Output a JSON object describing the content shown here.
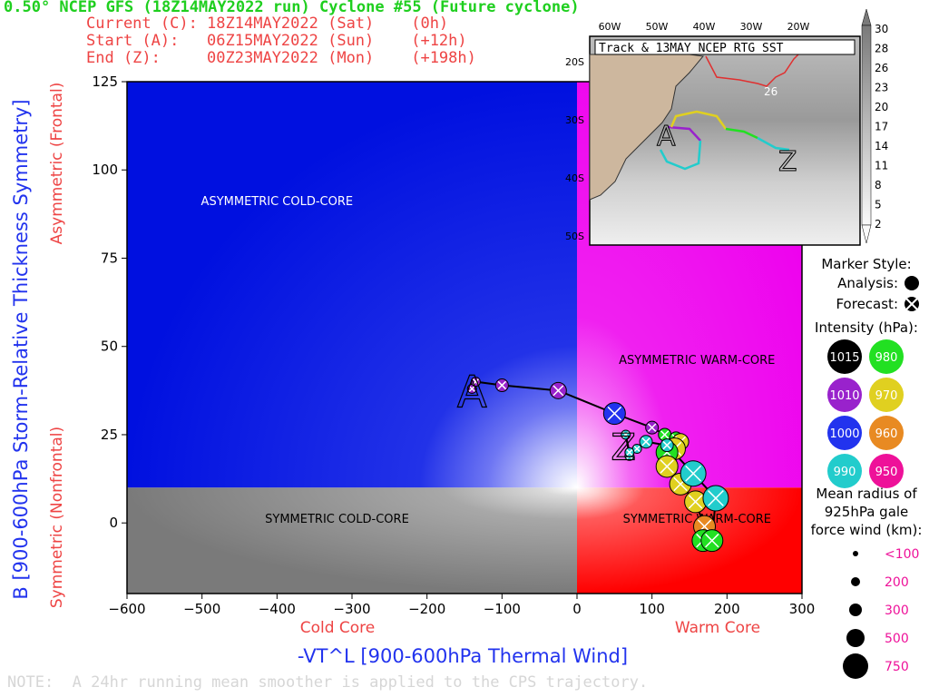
{
  "header": {
    "title": "0.50° NCEP GFS (18Z14MAY2022 run) Cyclone #55 (Future cyclone)",
    "current": "Current (C): 18Z14MAY2022 (Sat)    (0h)",
    "start": "Start (A):   06Z15MAY2022 (Sun)    (+12h)",
    "end": "End (Z):     00Z23MAY2022 (Mon)    (+198h)"
  },
  "note": "NOTE:  A 24hr running mean smoother is applied to the CPS trajectory.",
  "chart_data": [
    {
      "type": "scatter",
      "title": "",
      "xlabel": "-VT^L [900-600hPa Thermal Wind]",
      "ylabel": "B [900-600hPa Storm-Relative Thickness Symmetry]",
      "xlabel_left": "Cold Core",
      "xlabel_right": "Warm Core",
      "ylabel_top": "Asymmetric (Frontal)",
      "ylabel_bottom": "Symmetric (Nonfrontal)",
      "xlim": [
        -600,
        300
      ],
      "ylim": [
        -20,
        125
      ],
      "xticks": [
        -600,
        -500,
        -400,
        -300,
        -200,
        -100,
        0,
        100,
        200,
        300
      ],
      "yticks": [
        0,
        25,
        50,
        75,
        100,
        125
      ],
      "quadrant_labels": {
        "ul": "ASYMMETRIC COLD-CORE",
        "ur": "ASYMMETRIC WARM-CORE",
        "ll": "SYMMETRIC COLD-CORE",
        "lr": "SYMMETRIC WARM-CORE"
      },
      "start_marker": "A",
      "end_marker": "Z",
      "start_point": [
        -140,
        37
      ],
      "end_point": [
        62,
        22
      ],
      "trajectory": [
        {
          "x": -140,
          "y": 38,
          "p": 1010,
          "r": 100,
          "style": "forecast"
        },
        {
          "x": -135,
          "y": 40,
          "p": 1010,
          "r": 100,
          "style": "forecast"
        },
        {
          "x": -100,
          "y": 39,
          "p": 1010,
          "r": 200,
          "style": "forecast"
        },
        {
          "x": -25,
          "y": 37.5,
          "p": 1010,
          "r": 300,
          "style": "forecast"
        },
        {
          "x": 50,
          "y": 31,
          "p": 1000,
          "r": 500,
          "style": "forecast"
        },
        {
          "x": 100,
          "y": 27,
          "p": 1010,
          "r": 200,
          "style": "forecast"
        },
        {
          "x": 117,
          "y": 25,
          "p": 980,
          "r": 200,
          "style": "forecast"
        },
        {
          "x": 132,
          "y": 24,
          "p": 980,
          "r": 200,
          "style": "forecast"
        },
        {
          "x": 138,
          "y": 23,
          "p": 970,
          "r": 300,
          "style": "forecast"
        },
        {
          "x": 130,
          "y": 21,
          "p": 970,
          "r": 500,
          "style": "forecast"
        },
        {
          "x": 120,
          "y": 20,
          "p": 980,
          "r": 500,
          "style": "forecast"
        },
        {
          "x": 120,
          "y": 16,
          "p": 970,
          "r": 500,
          "style": "forecast"
        },
        {
          "x": 138,
          "y": 11,
          "p": 970,
          "r": 500,
          "style": "forecast"
        },
        {
          "x": 158,
          "y": 6,
          "p": 970,
          "r": 500,
          "style": "forecast"
        },
        {
          "x": 170,
          "y": -1,
          "p": 960,
          "r": 500,
          "style": "forecast"
        },
        {
          "x": 168,
          "y": -5,
          "p": 980,
          "r": 500,
          "style": "forecast"
        },
        {
          "x": 180,
          "y": -5,
          "p": 980,
          "r": 500,
          "style": "forecast"
        },
        {
          "x": 185,
          "y": 7,
          "p": 990,
          "r": 750,
          "style": "forecast"
        },
        {
          "x": 155,
          "y": 14,
          "p": 990,
          "r": 750,
          "style": "forecast"
        },
        {
          "x": 120,
          "y": 22,
          "p": 990,
          "r": 200,
          "style": "forecast"
        },
        {
          "x": 92,
          "y": 23,
          "p": 990,
          "r": 200,
          "style": "forecast"
        },
        {
          "x": 80,
          "y": 21,
          "p": 990,
          "r": 100,
          "style": "forecast"
        },
        {
          "x": 70,
          "y": 19,
          "p": 990,
          "r": 100,
          "style": "forecast"
        },
        {
          "x": 65,
          "y": 25,
          "p": 990,
          "r": 100,
          "style": "forecast"
        },
        {
          "x": 70,
          "y": 20,
          "p": 990,
          "r": 100,
          "style": "forecast"
        }
      ]
    },
    {
      "type": "map",
      "title": "Track & 13MAY NCEP RTG SST",
      "lon_ticks": [
        "60W",
        "50W",
        "40W",
        "30W",
        "20W"
      ],
      "lat_ticks": [
        "20S",
        "30S",
        "40S",
        "50S"
      ],
      "sst_contour_label": "26",
      "start_marker": "A",
      "end_marker": "Z",
      "colorbar": [
        30,
        28,
        26,
        23,
        20,
        17,
        14,
        11,
        8,
        5,
        2
      ]
    }
  ],
  "legend": {
    "marker_style": "Marker Style:",
    "analysis": "Analysis:",
    "forecast": "Forecast:",
    "intensity_title": "Intensity (hPa):",
    "intensity": [
      {
        "label": "1015",
        "color": "#000000"
      },
      {
        "label": "980",
        "color": "#22e022"
      },
      {
        "label": "1010",
        "color": "#9922cc"
      },
      {
        "label": "970",
        "color": "#e0d020"
      },
      {
        "label": "1000",
        "color": "#2233ee"
      },
      {
        "label": "960",
        "color": "#e88a22"
      },
      {
        "label": "990",
        "color": "#22cccc"
      },
      {
        "label": "950",
        "color": "#ee1199"
      }
    ],
    "radius_title": [
      "Mean radius of",
      "925hPa gale",
      "force wind (km):"
    ],
    "radius": [
      {
        "label": "<100",
        "size": 100
      },
      {
        "label": "200",
        "size": 200
      },
      {
        "label": "300",
        "size": 300
      },
      {
        "label": "500",
        "size": 500
      },
      {
        "label": "750",
        "size": 750
      }
    ]
  },
  "colors": {
    "title": "#1fcf1f",
    "header": "#ee4444",
    "axis_title": "#2233ee",
    "legend_radius_text": "#ee1199"
  }
}
